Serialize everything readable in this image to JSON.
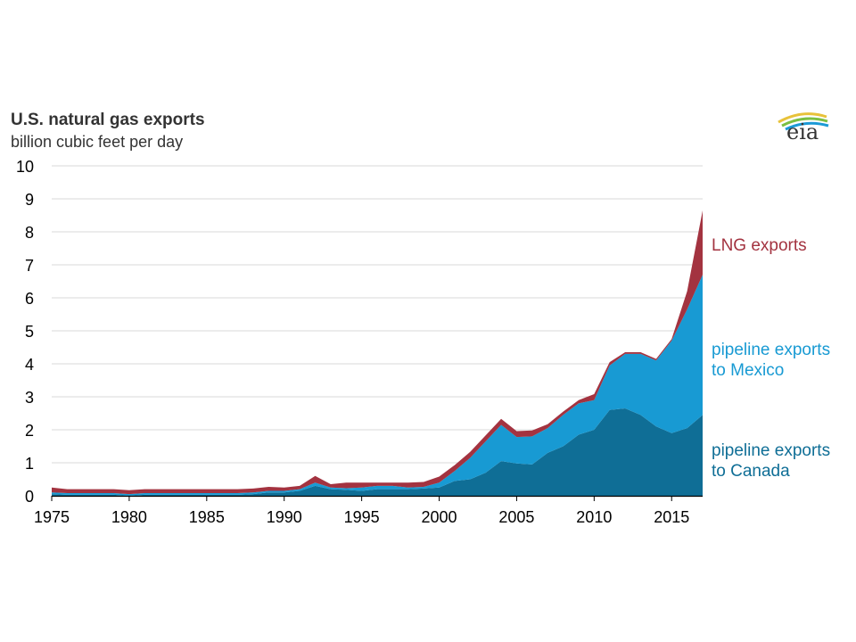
{
  "logo": {
    "text": "eia"
  },
  "chart_data": {
    "type": "area",
    "stacked": true,
    "title": "U.S. natural gas exports",
    "subtitle": "billion cubic feet per day",
    "x": [
      1975,
      1976,
      1977,
      1978,
      1979,
      1980,
      1981,
      1982,
      1983,
      1984,
      1985,
      1986,
      1987,
      1988,
      1989,
      1990,
      1991,
      1992,
      1993,
      1994,
      1995,
      1996,
      1997,
      1998,
      1999,
      2000,
      2001,
      2002,
      2003,
      2004,
      2005,
      2006,
      2007,
      2008,
      2009,
      2010,
      2011,
      2012,
      2013,
      2014,
      2015,
      2016,
      2017
    ],
    "xlim": [
      1975,
      2017
    ],
    "ylim": [
      0,
      10
    ],
    "yticks": [
      0,
      1,
      2,
      3,
      4,
      5,
      6,
      7,
      8,
      9,
      10
    ],
    "xticks": [
      1975,
      1980,
      1985,
      1990,
      1995,
      2000,
      2005,
      2010,
      2015
    ],
    "grid": true,
    "series": [
      {
        "name": "pipeline exports to Canada",
        "label_lines": [
          "pipeline exports",
          "to Canada"
        ],
        "color": "#0f6e96",
        "values": [
          0.05,
          0.03,
          0.03,
          0.03,
          0.03,
          0.0,
          0.03,
          0.03,
          0.03,
          0.03,
          0.03,
          0.03,
          0.03,
          0.05,
          0.1,
          0.1,
          0.15,
          0.3,
          0.2,
          0.18,
          0.15,
          0.2,
          0.2,
          0.2,
          0.22,
          0.25,
          0.45,
          0.5,
          0.7,
          1.05,
          0.98,
          0.95,
          1.3,
          1.5,
          1.85,
          2.0,
          2.6,
          2.65,
          2.45,
          2.1,
          1.9,
          2.05,
          2.45
        ]
      },
      {
        "name": "pipeline exports to Mexico",
        "label_lines": [
          "pipeline exports",
          "to Mexico"
        ],
        "color": "#189ad3",
        "values": [
          0.05,
          0.05,
          0.05,
          0.05,
          0.05,
          0.05,
          0.05,
          0.05,
          0.05,
          0.05,
          0.05,
          0.05,
          0.05,
          0.05,
          0.05,
          0.05,
          0.05,
          0.1,
          0.05,
          0.05,
          0.1,
          0.1,
          0.1,
          0.05,
          0.05,
          0.15,
          0.3,
          0.65,
          0.95,
          1.1,
          0.8,
          0.85,
          0.75,
          0.95,
          0.95,
          0.9,
          1.35,
          1.65,
          1.85,
          2.0,
          2.8,
          3.6,
          4.25
        ]
      },
      {
        "name": "LNG exports",
        "label_lines": [
          "LNG exports"
        ],
        "color": "#a33340",
        "values": [
          0.15,
          0.12,
          0.12,
          0.12,
          0.12,
          0.12,
          0.12,
          0.12,
          0.12,
          0.12,
          0.12,
          0.12,
          0.12,
          0.12,
          0.12,
          0.1,
          0.1,
          0.2,
          0.1,
          0.17,
          0.15,
          0.1,
          0.1,
          0.15,
          0.15,
          0.18,
          0.18,
          0.18,
          0.18,
          0.18,
          0.18,
          0.18,
          0.12,
          0.1,
          0.1,
          0.18,
          0.1,
          0.05,
          0.05,
          0.05,
          0.05,
          0.55,
          1.95
        ]
      }
    ],
    "legend": "direct labels at right"
  }
}
